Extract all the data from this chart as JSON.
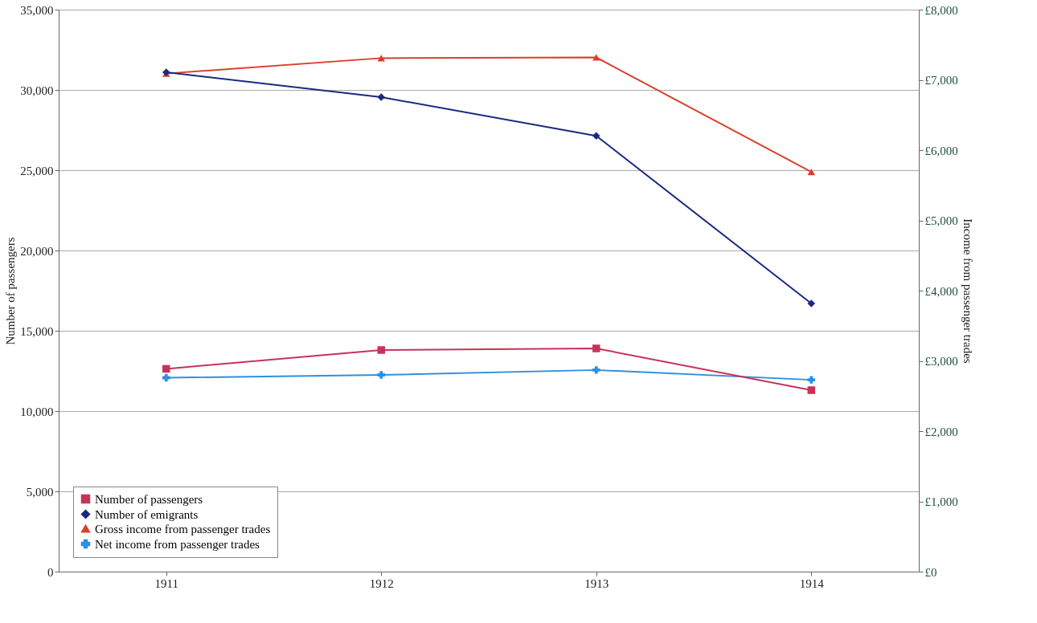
{
  "chart_data": {
    "type": "line",
    "categories": [
      "1911",
      "1912",
      "1913",
      "1914"
    ],
    "ylabel": "Number of passengers",
    "y2label": "Income from passenger trades",
    "ylim": [
      0,
      35000
    ],
    "yticks": [
      {
        "value": 0,
        "label": "0"
      },
      {
        "value": 5000,
        "label": "5,000"
      },
      {
        "value": 10000,
        "label": "10,000"
      },
      {
        "value": 15000,
        "label": "15,000"
      },
      {
        "value": 20000,
        "label": "20,000"
      },
      {
        "value": 25000,
        "label": "25,000"
      },
      {
        "value": 30000,
        "label": "30,000"
      },
      {
        "value": 35000,
        "label": "35,000"
      }
    ],
    "y2lim": [
      0,
      8000
    ],
    "y2ticks": [
      {
        "value": 0,
        "label": "£0"
      },
      {
        "value": 1000,
        "label": "£1,000"
      },
      {
        "value": 2000,
        "label": "£2,000"
      },
      {
        "value": 3000,
        "label": "£3,000"
      },
      {
        "value": 4000,
        "label": "£4,000"
      },
      {
        "value": 5000,
        "label": "£5,000"
      },
      {
        "value": 6000,
        "label": "£6,000"
      },
      {
        "value": 7000,
        "label": "£7,000"
      },
      {
        "value": 8000,
        "label": "£8,000"
      }
    ],
    "grid": "y",
    "legend": "bottom left",
    "line_style": "solid",
    "series": [
      {
        "name": "Number of passengers",
        "color": "#c8325a",
        "marker": "square",
        "values": [
          12630,
          13800,
          13900,
          11300
        ]
      },
      {
        "name": "Number of emigrants",
        "color": "#1a2a80",
        "marker": "diamond",
        "values": [
          31100,
          29550,
          27140,
          16700
        ]
      },
      {
        "name": "Gross income from passenger trades",
        "color": "#d8402a",
        "marker": "triangle",
        "axis": "y2",
        "values": [
          7090,
          7310,
          7320,
          5690
        ]
      },
      {
        "name": "Net income from passenger trades",
        "color": "#2f8fe0",
        "marker": "cross",
        "axis": "y2",
        "values": [
          2760,
          2800,
          2870,
          2730
        ]
      }
    ]
  }
}
